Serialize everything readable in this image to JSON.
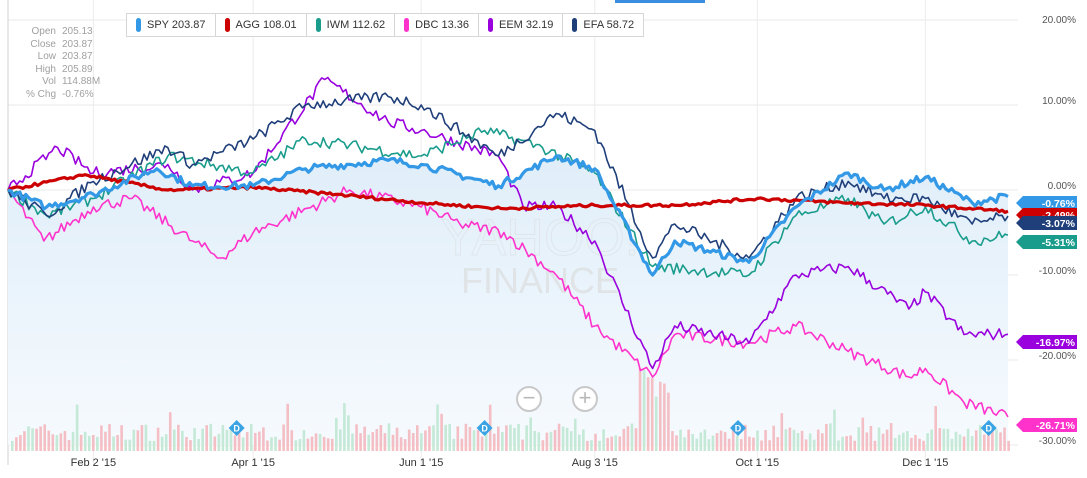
{
  "ohlc": [
    {
      "label": "Open",
      "value": "205.13"
    },
    {
      "label": "Close",
      "value": "203.87"
    },
    {
      "label": "Low",
      "value": "203.87"
    },
    {
      "label": "High",
      "value": "205.89"
    },
    {
      "label": "Vol",
      "value": "114.88M"
    },
    {
      "label": "% Chg",
      "value": "-0.76%"
    }
  ],
  "legend": [
    {
      "text": "SPY 203.87",
      "color": "#3399e6"
    },
    {
      "text": "AGG 108.01",
      "color": "#cc0000"
    },
    {
      "text": "IWM 112.62",
      "color": "#1a9c8c"
    },
    {
      "text": "DBC 13.36",
      "color": "#ff33cc"
    },
    {
      "text": "EEM 32.19",
      "color": "#9900dd"
    },
    {
      "text": "EFA 58.72",
      "color": "#1f3f7a"
    }
  ],
  "zoom": {
    "out_symbol": "−",
    "in_symbol": "+"
  },
  "watermark": {
    "line1": "YAHOO!",
    "line2": "FINANCE"
  },
  "dividend_marker_label": "D",
  "chart_data": {
    "type": "line",
    "y_unit": "percent change",
    "ylim": [
      -30,
      20
    ],
    "y_ticks": [
      20,
      10,
      0,
      -10,
      -20,
      -30
    ],
    "y_tick_labels": [
      "20.00%",
      "10.00%",
      "0.00%",
      "-10.00%",
      "-20.00%",
      "-30.00%"
    ],
    "x_ticks": [
      "2015-02-02",
      "2015-04-01",
      "2015-06-01",
      "2015-08-03",
      "2015-10-01",
      "2015-12-01"
    ],
    "x_tick_labels": [
      "Feb 2 '15",
      "Apr 1 '15",
      "Jun 1 '15",
      "Aug 3 '15",
      "Oct 1 '15",
      "Dec 1 '15"
    ],
    "x_range": [
      "2015-01-02",
      "2015-12-31"
    ],
    "grid": true,
    "series": [
      {
        "name": "SPY",
        "color": "#3399e6",
        "width": 3.2,
        "final_label": "-0.76%",
        "points": [
          [
            "2015-01-02",
            0
          ],
          [
            "2015-01-16",
            -2
          ],
          [
            "2015-02-02",
            -0.5
          ],
          [
            "2015-02-25",
            2.5
          ],
          [
            "2015-03-10",
            0.5
          ],
          [
            "2015-04-01",
            0.5
          ],
          [
            "2015-04-20",
            2.5
          ],
          [
            "2015-05-20",
            3.5
          ],
          [
            "2015-06-01",
            3
          ],
          [
            "2015-06-29",
            0.5
          ],
          [
            "2015-07-20",
            4
          ],
          [
            "2015-08-03",
            2.5
          ],
          [
            "2015-08-24",
            -10
          ],
          [
            "2015-09-01",
            -6
          ],
          [
            "2015-09-28",
            -8.5
          ],
          [
            "2015-10-15",
            -2
          ],
          [
            "2015-11-03",
            2
          ],
          [
            "2015-11-16",
            0
          ],
          [
            "2015-12-01",
            1.5
          ],
          [
            "2015-12-18",
            -1.5
          ],
          [
            "2015-12-31",
            -0.76
          ]
        ]
      },
      {
        "name": "AGG",
        "color": "#cc0000",
        "width": 3.2,
        "final_label": "-2.49%",
        "points": [
          [
            "2015-01-02",
            0
          ],
          [
            "2015-01-30",
            1.8
          ],
          [
            "2015-03-01",
            0
          ],
          [
            "2015-04-01",
            0.3
          ],
          [
            "2015-05-01",
            -0.5
          ],
          [
            "2015-06-01",
            -1.5
          ],
          [
            "2015-07-01",
            -2.2
          ],
          [
            "2015-08-03",
            -1.8
          ],
          [
            "2015-09-01",
            -1.8
          ],
          [
            "2015-10-01",
            -1
          ],
          [
            "2015-11-01",
            -1.5
          ],
          [
            "2015-12-01",
            -1.8
          ],
          [
            "2015-12-31",
            -2.49
          ]
        ]
      },
      {
        "name": "IWM",
        "color": "#1a9c8c",
        "width": 1.6,
        "final_label": "-5.31%",
        "points": [
          [
            "2015-01-02",
            0
          ],
          [
            "2015-01-16",
            -3
          ],
          [
            "2015-02-02",
            -1
          ],
          [
            "2015-03-01",
            4
          ],
          [
            "2015-04-01",
            2
          ],
          [
            "2015-04-20",
            6
          ],
          [
            "2015-06-01",
            4
          ],
          [
            "2015-06-24",
            7
          ],
          [
            "2015-07-15",
            5
          ],
          [
            "2015-08-03",
            2
          ],
          [
            "2015-08-24",
            -9
          ],
          [
            "2015-09-28",
            -10
          ],
          [
            "2015-10-15",
            -3
          ],
          [
            "2015-11-03",
            -1
          ],
          [
            "2015-11-16",
            -4
          ],
          [
            "2015-12-01",
            -2
          ],
          [
            "2015-12-18",
            -6
          ],
          [
            "2015-12-31",
            -5.31
          ]
        ]
      },
      {
        "name": "DBC",
        "color": "#ff33cc",
        "width": 1.6,
        "final_label": "-26.71%",
        "points": [
          [
            "2015-01-02",
            0
          ],
          [
            "2015-01-15",
            -6
          ],
          [
            "2015-02-02",
            -2
          ],
          [
            "2015-02-16",
            -1
          ],
          [
            "2015-03-10",
            -6
          ],
          [
            "2015-03-20",
            -8
          ],
          [
            "2015-04-01",
            -5
          ],
          [
            "2015-05-06",
            0
          ],
          [
            "2015-06-01",
            -2
          ],
          [
            "2015-06-15",
            -4
          ],
          [
            "2015-07-01",
            -5
          ],
          [
            "2015-07-20",
            -10
          ],
          [
            "2015-08-03",
            -16
          ],
          [
            "2015-08-24",
            -22
          ],
          [
            "2015-09-01",
            -17
          ],
          [
            "2015-09-28",
            -18
          ],
          [
            "2015-10-15",
            -16
          ],
          [
            "2015-11-03",
            -19
          ],
          [
            "2015-11-25",
            -22
          ],
          [
            "2015-12-01",
            -21
          ],
          [
            "2015-12-15",
            -25
          ],
          [
            "2015-12-31",
            -26.71
          ]
        ]
      },
      {
        "name": "EEM",
        "color": "#9900dd",
        "width": 1.6,
        "final_label": "-16.97%",
        "points": [
          [
            "2015-01-02",
            0
          ],
          [
            "2015-01-20",
            5
          ],
          [
            "2015-02-02",
            2
          ],
          [
            "2015-03-01",
            3
          ],
          [
            "2015-03-10",
            0
          ],
          [
            "2015-04-01",
            2
          ],
          [
            "2015-04-27",
            13
          ],
          [
            "2015-05-20",
            8
          ],
          [
            "2015-06-01",
            7
          ],
          [
            "2015-06-29",
            4
          ],
          [
            "2015-07-08",
            -2
          ],
          [
            "2015-07-20",
            -2
          ],
          [
            "2015-08-03",
            -6
          ],
          [
            "2015-08-24",
            -21
          ],
          [
            "2015-09-01",
            -16
          ],
          [
            "2015-09-28",
            -18
          ],
          [
            "2015-10-15",
            -10
          ],
          [
            "2015-11-03",
            -9
          ],
          [
            "2015-11-25",
            -14
          ],
          [
            "2015-12-01",
            -12
          ],
          [
            "2015-12-15",
            -17
          ],
          [
            "2015-12-31",
            -16.97
          ]
        ]
      },
      {
        "name": "EFA",
        "color": "#1f3f7a",
        "width": 1.6,
        "final_label": "-3.07%",
        "points": [
          [
            "2015-01-02",
            0
          ],
          [
            "2015-01-16",
            -3
          ],
          [
            "2015-02-02",
            1
          ],
          [
            "2015-03-01",
            5
          ],
          [
            "2015-03-10",
            3
          ],
          [
            "2015-04-01",
            6
          ],
          [
            "2015-04-20",
            10
          ],
          [
            "2015-05-20",
            11
          ],
          [
            "2015-06-01",
            10
          ],
          [
            "2015-06-29",
            4
          ],
          [
            "2015-07-20",
            9
          ],
          [
            "2015-08-03",
            7
          ],
          [
            "2015-08-24",
            -8
          ],
          [
            "2015-09-01",
            -4
          ],
          [
            "2015-09-28",
            -8
          ],
          [
            "2015-10-15",
            -1
          ],
          [
            "2015-11-03",
            1
          ],
          [
            "2015-11-16",
            -1
          ],
          [
            "2015-12-01",
            -1
          ],
          [
            "2015-12-18",
            -4
          ],
          [
            "2015-12-31",
            -3.07
          ]
        ]
      }
    ],
    "volume_markers": [
      "2015-03-26",
      "2015-06-24",
      "2015-09-24",
      "2015-12-24"
    ]
  }
}
